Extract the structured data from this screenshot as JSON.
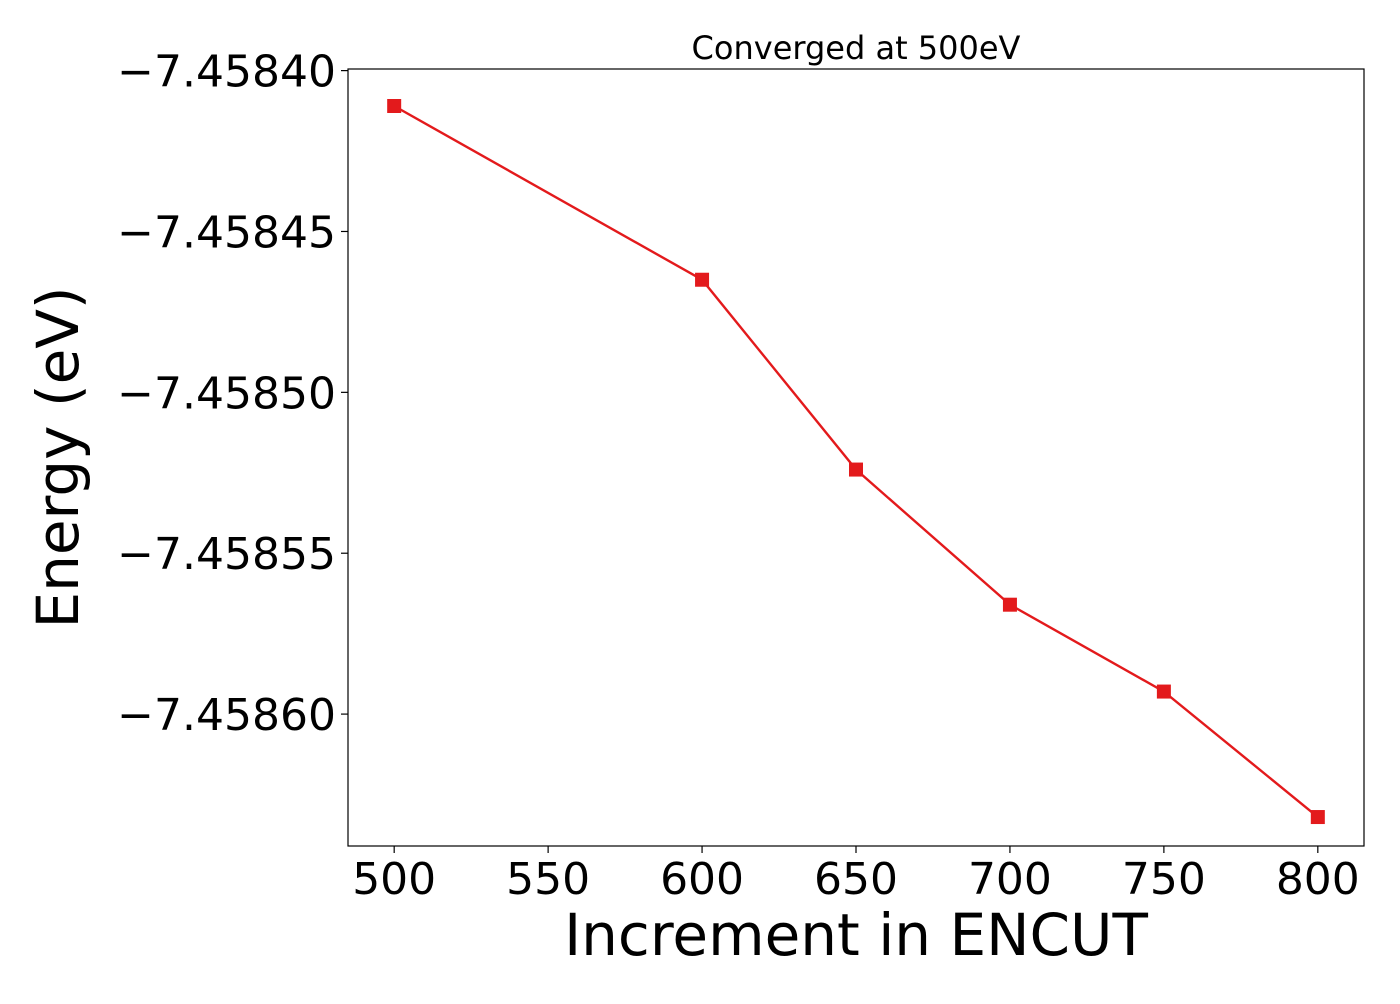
{
  "chart_data": {
    "type": "line",
    "title": "Converged at 500eV",
    "xlabel": "Increment in ENCUT",
    "ylabel": "Energy (eV)",
    "x": [
      500,
      600,
      650,
      700,
      750,
      800
    ],
    "series": [
      {
        "values": [
          -7.458411,
          -7.458465,
          -7.458524,
          -7.458566,
          -7.458593,
          -7.458632
        ],
        "color": "#e31a1c",
        "marker": "square"
      }
    ],
    "xlim": [
      485,
      815
    ],
    "ylim": [
      -7.458641,
      -7.4583995
    ],
    "xticks": [
      500,
      550,
      600,
      650,
      700,
      750,
      800
    ],
    "xtick_labels": [
      "500",
      "550",
      "600",
      "650",
      "700",
      "750",
      "800"
    ],
    "yticks": [
      -7.4584,
      -7.45845,
      -7.4585,
      -7.45855,
      -7.4586
    ],
    "ytick_labels": [
      "−7.45840",
      "−7.45845",
      "−7.45850",
      "−7.45855",
      "−7.45860"
    ],
    "grid": false,
    "legend": "none"
  }
}
